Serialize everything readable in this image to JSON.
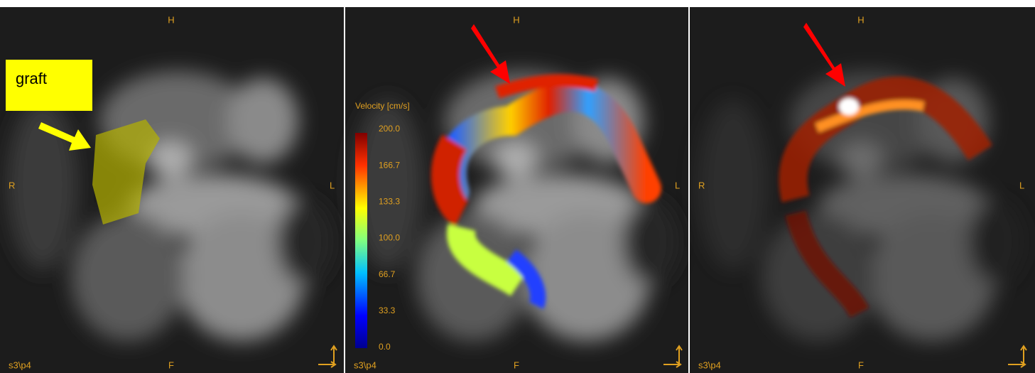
{
  "panels": [
    {
      "top": "H",
      "bottom": "F",
      "left": "R",
      "right": "L",
      "series": "s3\\p4"
    },
    {
      "top": "H",
      "bottom": "F",
      "right": "L",
      "series": "s3\\p4"
    },
    {
      "top": "H",
      "bottom": "F",
      "left": "R",
      "right": "L",
      "series": "s3\\p4"
    }
  ],
  "annotation": {
    "label": "graft"
  },
  "colorbar": {
    "title": "Velocity [cm/s]",
    "ticks": [
      "200.0",
      "166.7",
      "133.3",
      "100.0",
      "66.7",
      "33.3",
      "0.0"
    ]
  }
}
